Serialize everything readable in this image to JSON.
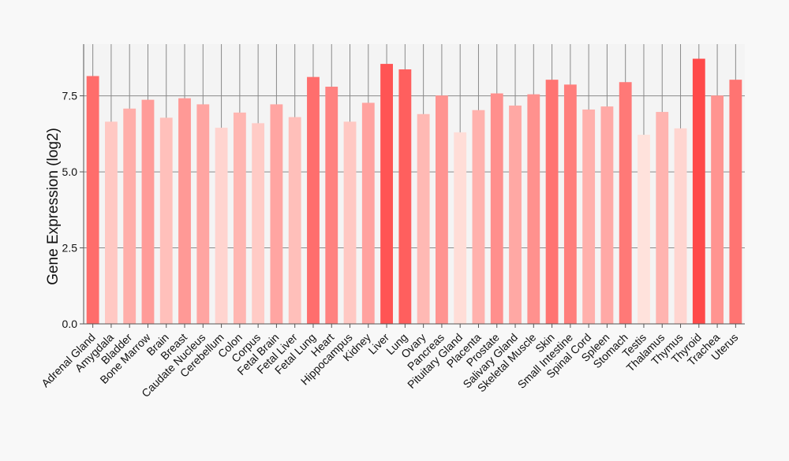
{
  "chart_data": {
    "type": "bar",
    "title": "",
    "xlabel": "",
    "ylabel": "Gene Expression (log2)",
    "ylim": [
      0,
      9.2
    ],
    "yticks": [
      0.0,
      2.5,
      5.0,
      7.5
    ],
    "ytick_labels": [
      "0.0",
      "2.5",
      "5.0",
      "7.5"
    ],
    "grid": true,
    "legend": "none",
    "color_scale": {
      "low": "#ffe2dc",
      "high": "#ff4a4a"
    },
    "categories": [
      "Adrenal Gland",
      "Amygdala",
      "Bladder",
      "Bone Marrow",
      "Brain",
      "Breast",
      "Caudate Nucleus",
      "Cerebellum",
      "Colon",
      "Corpus",
      "Fetal Brain",
      "Fetal Liver",
      "Fetal Lung",
      "Heart",
      "Hippocampus",
      "Kidney",
      "Liver",
      "Lung",
      "Ovary",
      "Pancreas",
      "Pituitary Gland",
      "Placenta",
      "Prostate",
      "Salivary Gland",
      "Skeletal Muscle",
      "Skin",
      "Small Intestine",
      "Spinal Cord",
      "Spleen",
      "Stomach",
      "Testis",
      "Thalamus",
      "Thymus",
      "Thyroid",
      "Trachea",
      "Uterus"
    ],
    "values": [
      8.15,
      6.65,
      7.08,
      7.37,
      6.78,
      7.42,
      7.22,
      6.45,
      6.95,
      6.6,
      7.22,
      6.8,
      8.12,
      7.8,
      6.65,
      7.27,
      8.55,
      8.37,
      6.9,
      7.51,
      6.3,
      7.03,
      7.58,
      7.18,
      7.55,
      8.03,
      7.87,
      7.05,
      7.15,
      7.95,
      6.22,
      6.97,
      6.43,
      8.72,
      7.51,
      8.03
    ]
  }
}
